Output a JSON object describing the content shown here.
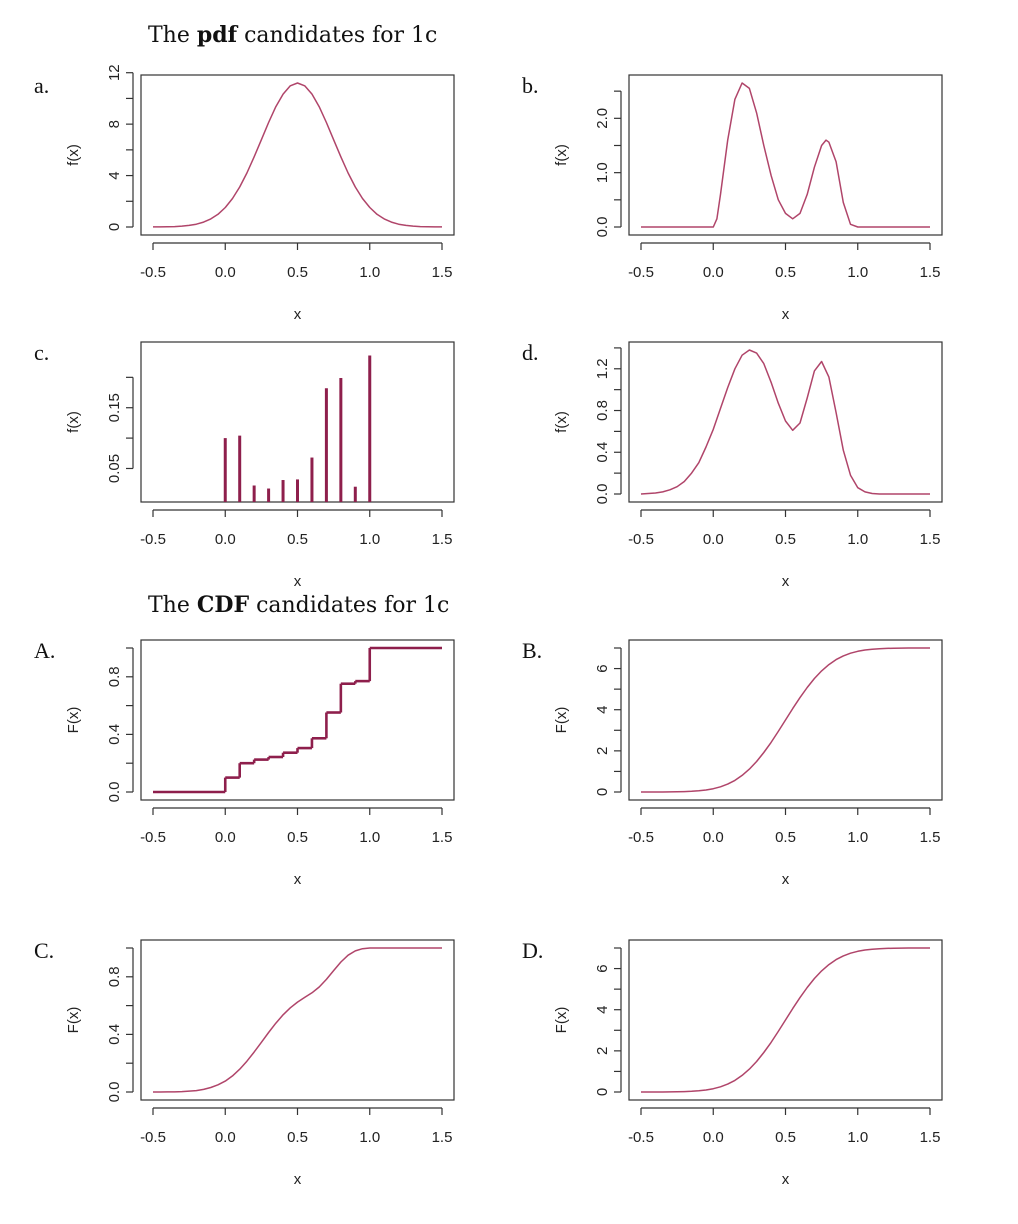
{
  "headings": {
    "pdf": {
      "pre": "The ",
      "bold": "pdf",
      "post": " candidates for 1c"
    },
    "cdf": {
      "pre": "The ",
      "bold": "CDF",
      "post": " candidates for 1c"
    }
  },
  "colors": {
    "curve": "#b0456a",
    "bar": "#8e1f4c",
    "axis": "#333333"
  },
  "chart_data": [
    {
      "panel": "a.",
      "type": "line",
      "xlabel": "x",
      "ylabel": "f(x)",
      "xlim": [
        -0.5,
        1.5
      ],
      "ylim": [
        0,
        11.2
      ],
      "xticks": [
        -0.5,
        0.0,
        0.5,
        1.0,
        1.5
      ],
      "xtick_labels": [
        "-0.5",
        "0.0",
        "0.5",
        "1.0",
        "1.5"
      ],
      "yticks": [
        0,
        2,
        4,
        6,
        8,
        10,
        12
      ],
      "ytick_labels": [
        "0",
        "",
        "4",
        "",
        "8",
        "",
        "12"
      ],
      "x": [
        -0.5,
        -0.45,
        -0.4,
        -0.35,
        -0.3,
        -0.25,
        -0.2,
        -0.15,
        -0.1,
        -0.05,
        0,
        0.05,
        0.1,
        0.15,
        0.2,
        0.25,
        0.3,
        0.35,
        0.4,
        0.45,
        0.5,
        0.55,
        0.6,
        0.65,
        0.7,
        0.75,
        0.8,
        0.85,
        0.9,
        0.95,
        1.0,
        1.05,
        1.1,
        1.15,
        1.2,
        1.25,
        1.3,
        1.35,
        1.4,
        1.45,
        1.5
      ],
      "y": [
        0.004,
        0.008,
        0.017,
        0.035,
        0.067,
        0.124,
        0.22,
        0.38,
        0.63,
        0.99,
        1.52,
        2.22,
        3.11,
        4.2,
        5.45,
        6.79,
        8.13,
        9.36,
        10.34,
        10.98,
        11.2,
        10.98,
        10.34,
        9.36,
        8.13,
        6.79,
        5.45,
        4.2,
        3.11,
        2.22,
        1.52,
        0.99,
        0.63,
        0.38,
        0.22,
        0.124,
        0.067,
        0.035,
        0.017,
        0.008,
        0.004
      ]
    },
    {
      "panel": "b.",
      "type": "line",
      "xlabel": "x",
      "ylabel": "f(x)",
      "xlim": [
        -0.5,
        1.5
      ],
      "ylim": [
        0,
        2.65
      ],
      "xticks": [
        -0.5,
        0.0,
        0.5,
        1.0,
        1.5
      ],
      "xtick_labels": [
        "-0.5",
        "0.0",
        "0.5",
        "1.0",
        "1.5"
      ],
      "yticks": [
        0,
        0.5,
        1.0,
        1.5,
        2.0,
        2.5
      ],
      "ytick_labels": [
        "0.0",
        "",
        "1.0",
        "",
        "2.0",
        ""
      ],
      "x": [
        -0.5,
        -0.45,
        -0.4,
        -0.35,
        -0.3,
        -0.25,
        -0.2,
        -0.15,
        -0.1,
        -0.05,
        0,
        0.025,
        0.05,
        0.1,
        0.15,
        0.2,
        0.25,
        0.3,
        0.35,
        0.4,
        0.45,
        0.5,
        0.55,
        0.6,
        0.65,
        0.7,
        0.75,
        0.78,
        0.8,
        0.85,
        0.9,
        0.95,
        1.0,
        1.05,
        1.1,
        1.15,
        1.2,
        1.25,
        1.3,
        1.35,
        1.4,
        1.45,
        1.5
      ],
      "y": [
        0,
        0,
        0,
        0,
        0,
        0,
        0,
        0,
        0,
        0,
        0,
        0.15,
        0.6,
        1.6,
        2.35,
        2.65,
        2.55,
        2.1,
        1.5,
        0.95,
        0.5,
        0.25,
        0.15,
        0.25,
        0.6,
        1.1,
        1.5,
        1.6,
        1.56,
        1.2,
        0.45,
        0.05,
        0,
        0,
        0,
        0,
        0,
        0,
        0,
        0,
        0,
        0,
        0
      ]
    },
    {
      "panel": "c.",
      "type": "bar",
      "xlabel": "x",
      "ylabel": "f(x)",
      "xlim": [
        -0.5,
        1.5
      ],
      "ylim": [
        0.008,
        0.245
      ],
      "xticks": [
        -0.5,
        0.0,
        0.5,
        1.0,
        1.5
      ],
      "xtick_labels": [
        "-0.5",
        "0.0",
        "0.5",
        "1.0",
        "1.5"
      ],
      "yticks": [
        0.05,
        0.1,
        0.15,
        0.2
      ],
      "ytick_labels": [
        "0.05",
        "",
        "0.15",
        ""
      ],
      "x": [
        0.0,
        0.1,
        0.2,
        0.3,
        0.4,
        0.5,
        0.6,
        0.7,
        0.8,
        0.9,
        1.0
      ],
      "y": [
        0.1,
        0.104,
        0.022,
        0.017,
        0.031,
        0.032,
        0.068,
        0.182,
        0.199,
        0.02,
        0.236
      ]
    },
    {
      "panel": "d.",
      "type": "line",
      "xlabel": "x",
      "ylabel": "f(x)",
      "xlim": [
        -0.5,
        1.5
      ],
      "ylim": [
        0,
        1.38
      ],
      "xticks": [
        -0.5,
        0.0,
        0.5,
        1.0,
        1.5
      ],
      "xtick_labels": [
        "-0.5",
        "0.0",
        "0.5",
        "1.0",
        "1.5"
      ],
      "yticks": [
        0,
        0.2,
        0.4,
        0.6,
        0.8,
        1.0,
        1.2,
        1.4
      ],
      "ytick_labels": [
        "0.0",
        "",
        "0.4",
        "",
        "0.8",
        "",
        "1.2",
        ""
      ],
      "x": [
        -0.5,
        -0.45,
        -0.4,
        -0.35,
        -0.3,
        -0.25,
        -0.2,
        -0.15,
        -0.1,
        -0.05,
        0,
        0.05,
        0.1,
        0.15,
        0.2,
        0.25,
        0.3,
        0.35,
        0.4,
        0.45,
        0.5,
        0.55,
        0.6,
        0.65,
        0.7,
        0.75,
        0.8,
        0.85,
        0.9,
        0.95,
        1.0,
        1.05,
        1.1,
        1.15,
        1.2,
        1.25,
        1.3,
        1.35,
        1.4,
        1.45,
        1.5
      ],
      "y": [
        0,
        0.005,
        0.01,
        0.02,
        0.04,
        0.07,
        0.12,
        0.2,
        0.3,
        0.45,
        0.62,
        0.82,
        1.02,
        1.2,
        1.33,
        1.38,
        1.35,
        1.25,
        1.07,
        0.87,
        0.7,
        0.61,
        0.68,
        0.92,
        1.18,
        1.27,
        1.12,
        0.78,
        0.42,
        0.18,
        0.06,
        0.02,
        0.005,
        0,
        0,
        0,
        0,
        0,
        0,
        0,
        0
      ]
    },
    {
      "panel": "A.",
      "type": "step",
      "xlabel": "x",
      "ylabel": "F(x)",
      "xlim": [
        -0.5,
        1.5
      ],
      "ylim": [
        0,
        1.0
      ],
      "xticks": [
        -0.5,
        0.0,
        0.5,
        1.0,
        1.5
      ],
      "xtick_labels": [
        "-0.5",
        "0.0",
        "0.5",
        "1.0",
        "1.5"
      ],
      "yticks": [
        0,
        0.2,
        0.4,
        0.6,
        0.8,
        1.0
      ],
      "ytick_labels": [
        "0.0",
        "",
        "0.4",
        "",
        "0.8",
        ""
      ],
      "x": [
        -0.5,
        0.0,
        0.1,
        0.2,
        0.3,
        0.4,
        0.5,
        0.6,
        0.7,
        0.8,
        0.9,
        1.0,
        1.5
      ],
      "y": [
        0,
        0.1,
        0.2,
        0.225,
        0.243,
        0.273,
        0.305,
        0.373,
        0.552,
        0.752,
        0.77,
        1.0,
        1.0
      ]
    },
    {
      "panel": "B.",
      "type": "line",
      "xlabel": "x",
      "ylabel": "F(x)",
      "xlim": [
        -0.5,
        1.5
      ],
      "ylim": [
        0,
        7
      ],
      "xticks": [
        -0.5,
        0.0,
        0.5,
        1.0,
        1.5
      ],
      "xtick_labels": [
        "-0.5",
        "0.0",
        "0.5",
        "1.0",
        "1.5"
      ],
      "yticks": [
        0,
        1,
        2,
        3,
        4,
        5,
        6,
        7
      ],
      "ytick_labels": [
        "0",
        "",
        "2",
        "",
        "4",
        "",
        "6",
        ""
      ],
      "x": [
        -0.5,
        -0.45,
        -0.4,
        -0.35,
        -0.3,
        -0.25,
        -0.2,
        -0.15,
        -0.1,
        -0.05,
        0,
        0.05,
        0.1,
        0.15,
        0.2,
        0.25,
        0.3,
        0.35,
        0.4,
        0.45,
        0.5,
        0.55,
        0.6,
        0.65,
        0.7,
        0.75,
        0.8,
        0.85,
        0.9,
        0.95,
        1.0,
        1.05,
        1.1,
        1.15,
        1.2,
        1.25,
        1.3,
        1.35,
        1.4,
        1.45,
        1.5
      ],
      "y": [
        0,
        0.001,
        0.001,
        0.002,
        0.005,
        0.009,
        0.018,
        0.033,
        0.057,
        0.097,
        0.16,
        0.251,
        0.384,
        0.566,
        0.806,
        1.111,
        1.483,
        1.92,
        2.412,
        2.945,
        3.5,
        4.055,
        4.588,
        5.08,
        5.517,
        5.889,
        6.194,
        6.434,
        6.616,
        6.749,
        6.84,
        6.903,
        6.943,
        6.967,
        6.982,
        6.991,
        6.995,
        6.998,
        6.999,
        7.0,
        7.0
      ]
    },
    {
      "panel": "C.",
      "type": "line",
      "xlabel": "x",
      "ylabel": "F(x)",
      "xlim": [
        -0.5,
        1.5
      ],
      "ylim": [
        0,
        1.0
      ],
      "xticks": [
        -0.5,
        0.0,
        0.5,
        1.0,
        1.5
      ],
      "xtick_labels": [
        "-0.5",
        "0.0",
        "0.5",
        "1.0",
        "1.5"
      ],
      "yticks": [
        0,
        0.2,
        0.4,
        0.6,
        0.8,
        1.0
      ],
      "ytick_labels": [
        "0.0",
        "",
        "0.4",
        "",
        "0.8",
        ""
      ],
      "x": [
        -0.5,
        -0.45,
        -0.4,
        -0.35,
        -0.3,
        -0.25,
        -0.2,
        -0.15,
        -0.1,
        -0.05,
        0,
        0.05,
        0.1,
        0.15,
        0.2,
        0.25,
        0.3,
        0.35,
        0.4,
        0.45,
        0.5,
        0.55,
        0.6,
        0.65,
        0.7,
        0.75,
        0.8,
        0.85,
        0.9,
        0.95,
        1.0,
        1.05,
        1.1,
        1.15,
        1.2,
        1.25,
        1.3,
        1.35,
        1.4,
        1.45,
        1.5
      ],
      "y": [
        0,
        0,
        0.001,
        0.001,
        0.003,
        0.006,
        0.01,
        0.018,
        0.031,
        0.05,
        0.076,
        0.112,
        0.158,
        0.214,
        0.277,
        0.345,
        0.413,
        0.478,
        0.536,
        0.585,
        0.624,
        0.657,
        0.689,
        0.729,
        0.782,
        0.843,
        0.903,
        0.95,
        0.98,
        0.995,
        1.0,
        1.0,
        1.0,
        1.0,
        1.0,
        1.0,
        1.0,
        1.0,
        1.0,
        1.0,
        1.0
      ]
    },
    {
      "panel": "D.",
      "type": "line",
      "xlabel": "x",
      "ylabel": "F(x)",
      "xlim": [
        -0.5,
        1.5
      ],
      "ylim": [
        0,
        7
      ],
      "xticks": [
        -0.5,
        0.0,
        0.5,
        1.0,
        1.5
      ],
      "xtick_labels": [
        "-0.5",
        "0.0",
        "0.5",
        "1.0",
        "1.5"
      ],
      "yticks": [
        0,
        1,
        2,
        3,
        4,
        5,
        6,
        7
      ],
      "ytick_labels": [
        "0",
        "",
        "2",
        "",
        "4",
        "",
        "6",
        ""
      ],
      "x": [
        -0.5,
        -0.45,
        -0.4,
        -0.35,
        -0.3,
        -0.25,
        -0.2,
        -0.15,
        -0.1,
        -0.05,
        0,
        0.05,
        0.1,
        0.15,
        0.2,
        0.25,
        0.3,
        0.35,
        0.4,
        0.45,
        0.5,
        0.55,
        0.6,
        0.65,
        0.7,
        0.75,
        0.8,
        0.85,
        0.9,
        0.95,
        1.0,
        1.05,
        1.1,
        1.15,
        1.2,
        1.25,
        1.3,
        1.35,
        1.4,
        1.45,
        1.5
      ],
      "y": [
        0,
        0.001,
        0.001,
        0.002,
        0.005,
        0.009,
        0.018,
        0.033,
        0.057,
        0.097,
        0.16,
        0.251,
        0.384,
        0.566,
        0.806,
        1.111,
        1.483,
        1.92,
        2.412,
        2.945,
        3.5,
        4.055,
        4.588,
        5.08,
        5.517,
        5.889,
        6.194,
        6.434,
        6.616,
        6.749,
        6.84,
        6.903,
        6.943,
        6.967,
        6.982,
        6.991,
        6.995,
        6.998,
        6.999,
        7.0,
        7.0
      ]
    }
  ]
}
